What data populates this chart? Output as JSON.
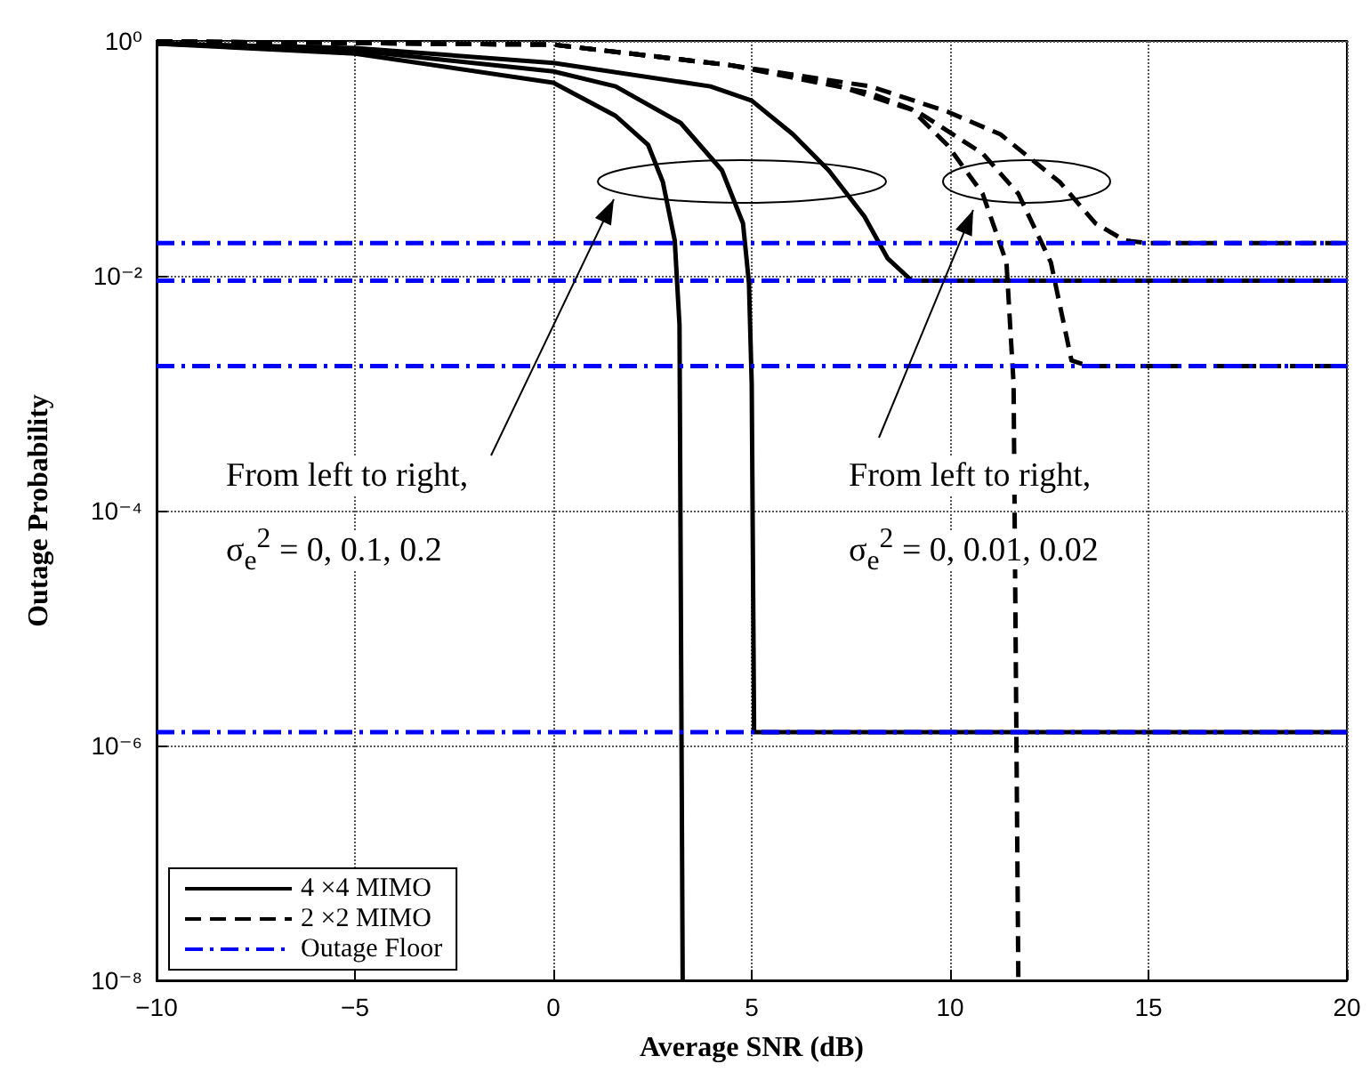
{
  "chart_data": {
    "type": "line",
    "xlabel": "Average SNR (dB)",
    "ylabel": "Outage Probability",
    "log": "y",
    "xlim": [
      -10,
      20
    ],
    "xticks": [
      {
        "value": -10,
        "label": "−10"
      },
      {
        "value": -5,
        "label": "−5"
      },
      0,
      5,
      10,
      15,
      20
    ],
    "ylim": [
      1e-08,
      1
    ],
    "yticks": [
      {
        "value": 1e-08,
        "label": "10⁻⁸"
      },
      {
        "value": 1e-06,
        "label": "10⁻⁶"
      },
      {
        "value": 0.0001,
        "label": "10⁻⁴"
      },
      {
        "value": 0.01,
        "label": "10⁻²"
      },
      {
        "value": 1,
        "label": "10⁰"
      }
    ],
    "grid": true,
    "legend": "bottom left",
    "marker": "none",
    "series": [
      {
        "name": "4 ×4 MIMO",
        "color": "#000000",
        "line_style": "solid",
        "x": [
          -10,
          -5,
          0,
          1.57,
          2.39,
          2.76,
          3.06,
          3.18,
          3.26
        ],
        "values": [
          0.95,
          0.78,
          0.44,
          0.23,
          0.13,
          0.063,
          0.02,
          0.0038,
          1e-08
        ]
      },
      {
        "color": "#000000",
        "line_style": "solid",
        "x": [
          -10,
          -5,
          0,
          1.57,
          3.21,
          4.25,
          4.78,
          4.93,
          5.0,
          5.06,
          20
        ],
        "values": [
          0.95,
          0.83,
          0.55,
          0.41,
          0.2,
          0.079,
          0.028,
          0.0087,
          0.0012,
          1.3e-06,
          1.3e-06
        ]
      },
      {
        "color": "#000000",
        "line_style": "solid",
        "x": [
          -10,
          -5,
          0,
          3.96,
          5.0,
          6.04,
          6.94,
          7.84,
          8.43,
          9.03,
          20
        ],
        "values": [
          0.95,
          0.87,
          0.65,
          0.41,
          0.31,
          0.16,
          0.079,
          0.032,
          0.014,
          0.0091,
          0.0091
        ]
      },
      {
        "name": "2 ×2 MIMO",
        "color": "#000000",
        "line_style": "dashed",
        "x": [
          -10,
          0,
          4.48,
          6.94,
          9.03,
          9.93,
          10.82,
          11.42,
          11.6,
          11.72
        ],
        "values": [
          0.99,
          0.93,
          0.62,
          0.44,
          0.26,
          0.13,
          0.05,
          0.013,
          0.0012,
          1e-08
        ]
      },
      {
        "color": "#000000",
        "line_style": "dashed",
        "x": [
          -10,
          0,
          4.48,
          7.99,
          9.18,
          10.82,
          11.72,
          12.54,
          13.06,
          13.5,
          20
        ],
        "values": [
          0.99,
          0.93,
          0.62,
          0.36,
          0.25,
          0.11,
          0.05,
          0.013,
          0.0019,
          0.0017,
          0.0017
        ]
      },
      {
        "color": "#000000",
        "line_style": "dashed",
        "x": [
          -10,
          0,
          4.48,
          7.99,
          9.93,
          11.27,
          12.76,
          13.66,
          14.4,
          15,
          20
        ],
        "values": [
          0.99,
          0.93,
          0.62,
          0.41,
          0.25,
          0.16,
          0.063,
          0.028,
          0.02,
          0.019,
          0.019
        ]
      },
      {
        "name": "Outage Floor",
        "color": "#0000ff",
        "line_style": "dashdot",
        "x": [
          -10,
          20
        ],
        "values": [
          0.019,
          0.019
        ]
      },
      {
        "color": "#0000ff",
        "line_style": "dashdot",
        "x": [
          -10,
          20
        ],
        "values": [
          0.0091,
          0.0091
        ]
      },
      {
        "color": "#0000ff",
        "line_style": "dashdot",
        "x": [
          -10,
          20
        ],
        "values": [
          0.0017,
          0.0017
        ]
      },
      {
        "color": "#0000ff",
        "line_style": "dashdot",
        "x": [
          -10,
          20
        ],
        "values": [
          1.3e-06,
          1.3e-06
        ]
      }
    ],
    "annotations": [
      "From left to right,\nσ$_{e}$$^{2}$ = 0, 0.1, 0.2",
      "From left to right,\nσ$_{e}$$^{2}$ = 0, 0.01, 0.02"
    ]
  }
}
